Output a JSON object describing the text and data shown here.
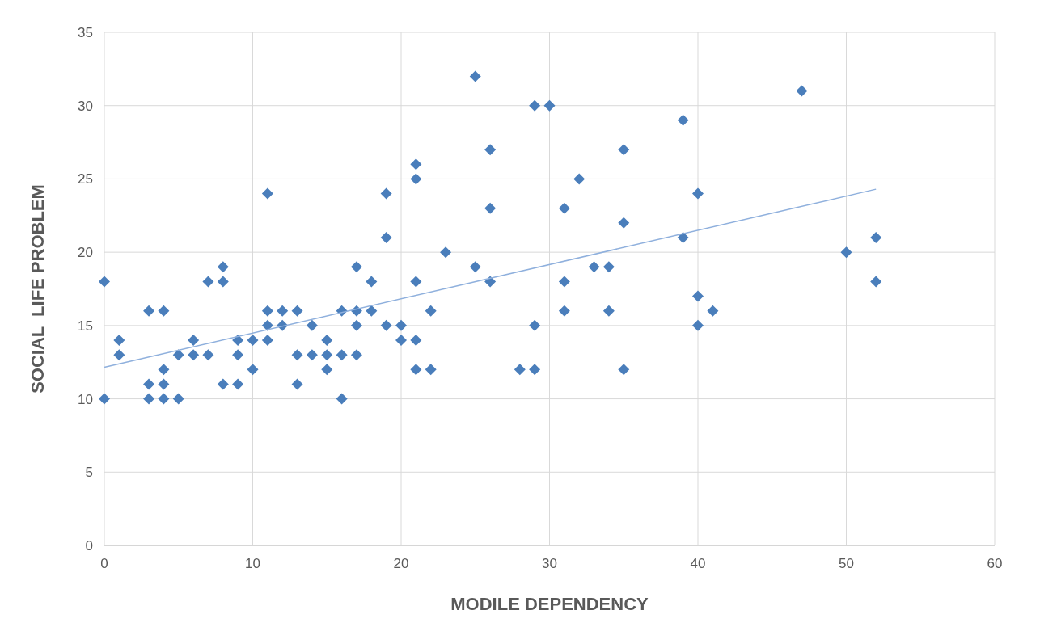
{
  "chart_data": {
    "type": "scatter",
    "xlabel": "MODILE DEPENDENCY",
    "ylabel": "SOCIAL  LIFE PROBLEM",
    "xlim": [
      0,
      60
    ],
    "xticks": [
      0,
      10,
      20,
      30,
      40,
      50,
      60
    ],
    "ylim": [
      0,
      35
    ],
    "yticks": [
      0,
      5,
      10,
      15,
      20,
      25,
      30,
      35
    ],
    "grid": true,
    "marker": "diamond",
    "series": [
      {
        "color": "#4a7ebb",
        "x": [
          0,
          0,
          1,
          1,
          3,
          3,
          3,
          4,
          4,
          4,
          4,
          5,
          5,
          6,
          6,
          7,
          7,
          8,
          8,
          8,
          9,
          9,
          9,
          10,
          10,
          11,
          11,
          11,
          11,
          12,
          12,
          13,
          13,
          13,
          14,
          14,
          15,
          15,
          15,
          16,
          16,
          16,
          17,
          17,
          17,
          17,
          18,
          18,
          19,
          19,
          19,
          20,
          20,
          21,
          21,
          21,
          21,
          21,
          22,
          22,
          23,
          25,
          25,
          26,
          26,
          26,
          28,
          29,
          29,
          29,
          30,
          31,
          31,
          31,
          32,
          33,
          34,
          34,
          35,
          35,
          35,
          39,
          39,
          40,
          40,
          40,
          41,
          47,
          50,
          52,
          52
        ],
        "values": [
          18,
          10,
          14,
          13,
          16,
          11,
          10,
          16,
          12,
          11,
          10,
          13,
          10,
          14,
          13,
          18,
          13,
          19,
          18,
          11,
          14,
          13,
          11,
          14,
          12,
          24,
          16,
          15,
          14,
          16,
          15,
          16,
          13,
          11,
          15,
          13,
          14,
          13,
          12,
          16,
          13,
          10,
          19,
          16,
          15,
          13,
          18,
          16,
          24,
          21,
          15,
          15,
          14,
          26,
          25,
          18,
          14,
          12,
          16,
          12,
          20,
          32,
          19,
          27,
          23,
          18,
          12,
          30,
          15,
          12,
          30,
          23,
          18,
          16,
          25,
          19,
          19,
          16,
          27,
          22,
          12,
          29,
          21,
          24,
          17,
          15,
          16,
          31,
          20,
          21,
          18
        ]
      },
      {
        "type": "line",
        "color": "#8fb0dd",
        "marker": "none",
        "x": [
          0,
          52
        ],
        "values": [
          12.15,
          24.3
        ]
      }
    ]
  }
}
